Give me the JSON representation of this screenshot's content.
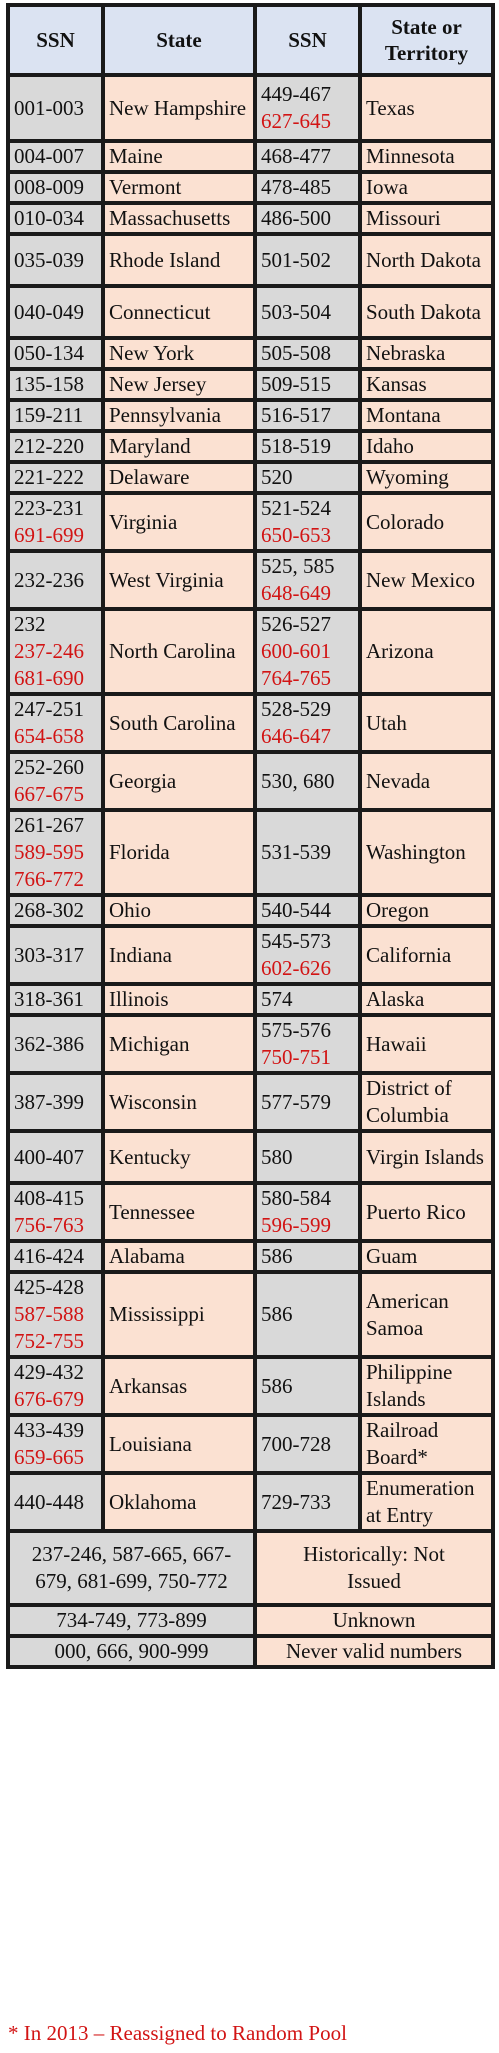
{
  "headers": [
    "SSN",
    "State",
    "SSN",
    "State or Territory"
  ],
  "rows": [
    {
      "l_ssn": [
        "001-003"
      ],
      "l_red": [],
      "l_state": "New Hampshire",
      "r_ssn": [
        "449-467"
      ],
      "r_red": [
        "627-645"
      ],
      "r_state": "Texas"
    },
    {
      "l_ssn": [
        "004-007"
      ],
      "l_red": [],
      "l_state": "Maine",
      "r_ssn": [
        "468-477"
      ],
      "r_red": [],
      "r_state": "Minnesota"
    },
    {
      "l_ssn": [
        "008-009"
      ],
      "l_red": [],
      "l_state": "Vermont",
      "r_ssn": [
        "478-485"
      ],
      "r_red": [],
      "r_state": "Iowa"
    },
    {
      "l_ssn": [
        "010-034"
      ],
      "l_red": [],
      "l_state": "Massachusetts",
      "r_ssn": [
        "486-500"
      ],
      "r_red": [],
      "r_state": "Missouri"
    },
    {
      "l_ssn": [
        "035-039"
      ],
      "l_red": [],
      "l_state": "Rhode Island",
      "r_ssn": [
        "501-502"
      ],
      "r_red": [],
      "r_state": "North Dakota"
    },
    {
      "l_ssn": [
        "040-049"
      ],
      "l_red": [],
      "l_state": "Connecticut",
      "r_ssn": [
        "503-504"
      ],
      "r_red": [],
      "r_state": "South Dakota"
    },
    {
      "l_ssn": [
        "050-134"
      ],
      "l_red": [],
      "l_state": "New York",
      "r_ssn": [
        "505-508"
      ],
      "r_red": [],
      "r_state": "Nebraska"
    },
    {
      "l_ssn": [
        "135-158"
      ],
      "l_red": [],
      "l_state": "New Jersey",
      "r_ssn": [
        "509-515"
      ],
      "r_red": [],
      "r_state": "Kansas"
    },
    {
      "l_ssn": [
        "159-211"
      ],
      "l_red": [],
      "l_state": "Pennsylvania",
      "r_ssn": [
        "516-517"
      ],
      "r_red": [],
      "r_state": "Montana"
    },
    {
      "l_ssn": [
        "212-220"
      ],
      "l_red": [],
      "l_state": "Maryland",
      "r_ssn": [
        "518-519"
      ],
      "r_red": [],
      "r_state": "Idaho"
    },
    {
      "l_ssn": [
        "221-222"
      ],
      "l_red": [],
      "l_state": "Delaware",
      "r_ssn": [
        "520"
      ],
      "r_red": [],
      "r_state": "Wyoming"
    },
    {
      "l_ssn": [
        "223-231"
      ],
      "l_red": [
        "691-699"
      ],
      "l_state": "Virginia",
      "r_ssn": [
        "521-524"
      ],
      "r_red": [
        "650-653"
      ],
      "r_state": "Colorado"
    },
    {
      "l_ssn": [
        "232-236"
      ],
      "l_red": [],
      "l_state": "West Virginia",
      "r_ssn": [
        "525, 585"
      ],
      "r_red": [
        "648-649"
      ],
      "r_state": "New Mexico"
    },
    {
      "l_ssn": [
        "232"
      ],
      "l_red": [
        "237-246",
        "681-690"
      ],
      "l_state": "North Carolina",
      "r_ssn": [
        "526-527"
      ],
      "r_red": [
        "600-601",
        "764-765"
      ],
      "r_state": "Arizona"
    },
    {
      "l_ssn": [
        "247-251"
      ],
      "l_red": [
        "654-658"
      ],
      "l_state": "South Carolina",
      "r_ssn": [
        "528-529"
      ],
      "r_red": [
        "646-647"
      ],
      "r_state": "Utah"
    },
    {
      "l_ssn": [
        "252-260"
      ],
      "l_red": [
        "667-675"
      ],
      "l_state": "Georgia",
      "r_ssn": [
        "530, 680"
      ],
      "r_red": [],
      "r_state": "Nevada"
    },
    {
      "l_ssn": [
        "261-267"
      ],
      "l_red": [
        "589-595",
        "766-772"
      ],
      "l_state": "Florida",
      "r_ssn": [
        "531-539"
      ],
      "r_red": [],
      "r_state": "Washington"
    },
    {
      "l_ssn": [
        "268-302"
      ],
      "l_red": [],
      "l_state": "Ohio",
      "r_ssn": [
        "540-544"
      ],
      "r_red": [],
      "r_state": "Oregon"
    },
    {
      "l_ssn": [
        "303-317"
      ],
      "l_red": [],
      "l_state": "Indiana",
      "r_ssn": [
        "545-573"
      ],
      "r_red": [
        "602-626"
      ],
      "r_state": "California"
    },
    {
      "l_ssn": [
        "318-361"
      ],
      "l_red": [],
      "l_state": "Illinois",
      "r_ssn": [
        "574"
      ],
      "r_red": [],
      "r_state": "Alaska"
    },
    {
      "l_ssn": [
        "362-386"
      ],
      "l_red": [],
      "l_state": "Michigan",
      "r_ssn": [
        "575-576"
      ],
      "r_red": [
        "750-751"
      ],
      "r_state": "Hawaii"
    },
    {
      "l_ssn": [
        "387-399"
      ],
      "l_red": [],
      "l_state": "Wisconsin",
      "r_ssn": [
        "577-579"
      ],
      "r_red": [],
      "r_state": "District of Columbia"
    },
    {
      "l_ssn": [
        "400-407"
      ],
      "l_red": [],
      "l_state": "Kentucky",
      "r_ssn": [
        "580"
      ],
      "r_red": [],
      "r_state": "Virgin Islands"
    },
    {
      "l_ssn": [
        "408-415"
      ],
      "l_red": [
        "756-763"
      ],
      "l_state": "Tennessee",
      "r_ssn": [
        "580-584"
      ],
      "r_red": [
        "596-599"
      ],
      "r_state": "Puerto Rico"
    },
    {
      "l_ssn": [
        "416-424"
      ],
      "l_red": [],
      "l_state": "Alabama",
      "r_ssn": [
        "586"
      ],
      "r_red": [],
      "r_state": "Guam"
    },
    {
      "l_ssn": [
        "425-428"
      ],
      "l_red": [
        "587-588",
        "752-755"
      ],
      "l_state": "Mississippi",
      "r_ssn": [
        "586"
      ],
      "r_red": [],
      "r_state": "American Samoa"
    },
    {
      "l_ssn": [
        "429-432"
      ],
      "l_red": [
        "676-679"
      ],
      "l_state": "Arkansas",
      "r_ssn": [
        "586"
      ],
      "r_red": [],
      "r_state": "Philippine Islands"
    },
    {
      "l_ssn": [
        "433-439"
      ],
      "l_red": [
        "659-665"
      ],
      "l_state": "Louisiana",
      "r_ssn": [
        "700-728"
      ],
      "r_red": [],
      "r_state": "Railroad Board*"
    },
    {
      "l_ssn": [
        "440-448"
      ],
      "l_red": [],
      "l_state": "Oklahoma",
      "r_ssn": [
        "729-733"
      ],
      "r_red": [],
      "r_state": "Enumeration at Entry"
    }
  ],
  "special_rows": [
    {
      "ranges": "237-246, 587-665, 667-679, 681-699, 750-772",
      "status": "Historically: Not Issued"
    },
    {
      "ranges": "734-749, 773-899",
      "status": "Unknown"
    },
    {
      "ranges": "000, 666, 900-999",
      "status": "Never valid numbers"
    }
  ],
  "footnote": "* In 2013 – Reassigned to Random Pool",
  "colors": {
    "header_bg": "#dbe3f2",
    "gray_cell": "#d9d9d9",
    "peach_cell": "#fbe1d2",
    "red_text": "#d21414",
    "border": "#1a1a1a"
  }
}
